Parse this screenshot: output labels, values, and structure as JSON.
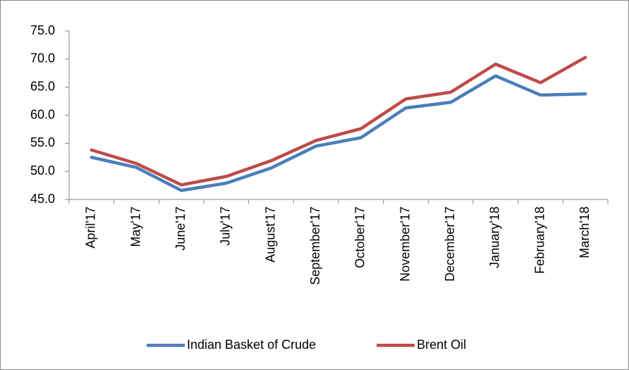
{
  "chart_data": {
    "type": "line",
    "categories": [
      "April'17",
      "May'17",
      "June'17",
      "July'17",
      "August'17",
      "September'17",
      "October'17",
      "November'17",
      "December'17",
      "January'18",
      "February'18",
      "March'18"
    ],
    "series": [
      {
        "name": "Indian Basket of Crude",
        "color": "#4a7ebb",
        "values": [
          52.5,
          50.7,
          46.6,
          47.9,
          50.6,
          54.5,
          56.0,
          61.3,
          62.3,
          67.0,
          63.6,
          63.8
        ]
      },
      {
        "name": "Brent Oil",
        "color": "#be4b48",
        "values": [
          53.8,
          51.4,
          47.6,
          49.1,
          51.9,
          55.5,
          57.6,
          62.9,
          64.1,
          69.1,
          65.8,
          70.3
        ]
      }
    ],
    "ylim": [
      45,
      75
    ],
    "yticks": [
      {
        "value": 45,
        "label": "45.0"
      },
      {
        "value": 50,
        "label": "50.0"
      },
      {
        "value": 55,
        "label": "55.0"
      },
      {
        "value": 60,
        "label": "60.0"
      },
      {
        "value": 65,
        "label": "65.0"
      },
      {
        "value": 70,
        "label": "70.0"
      },
      {
        "value": 75,
        "label": "75.0"
      }
    ],
    "grid": false,
    "legend": "bottom"
  }
}
